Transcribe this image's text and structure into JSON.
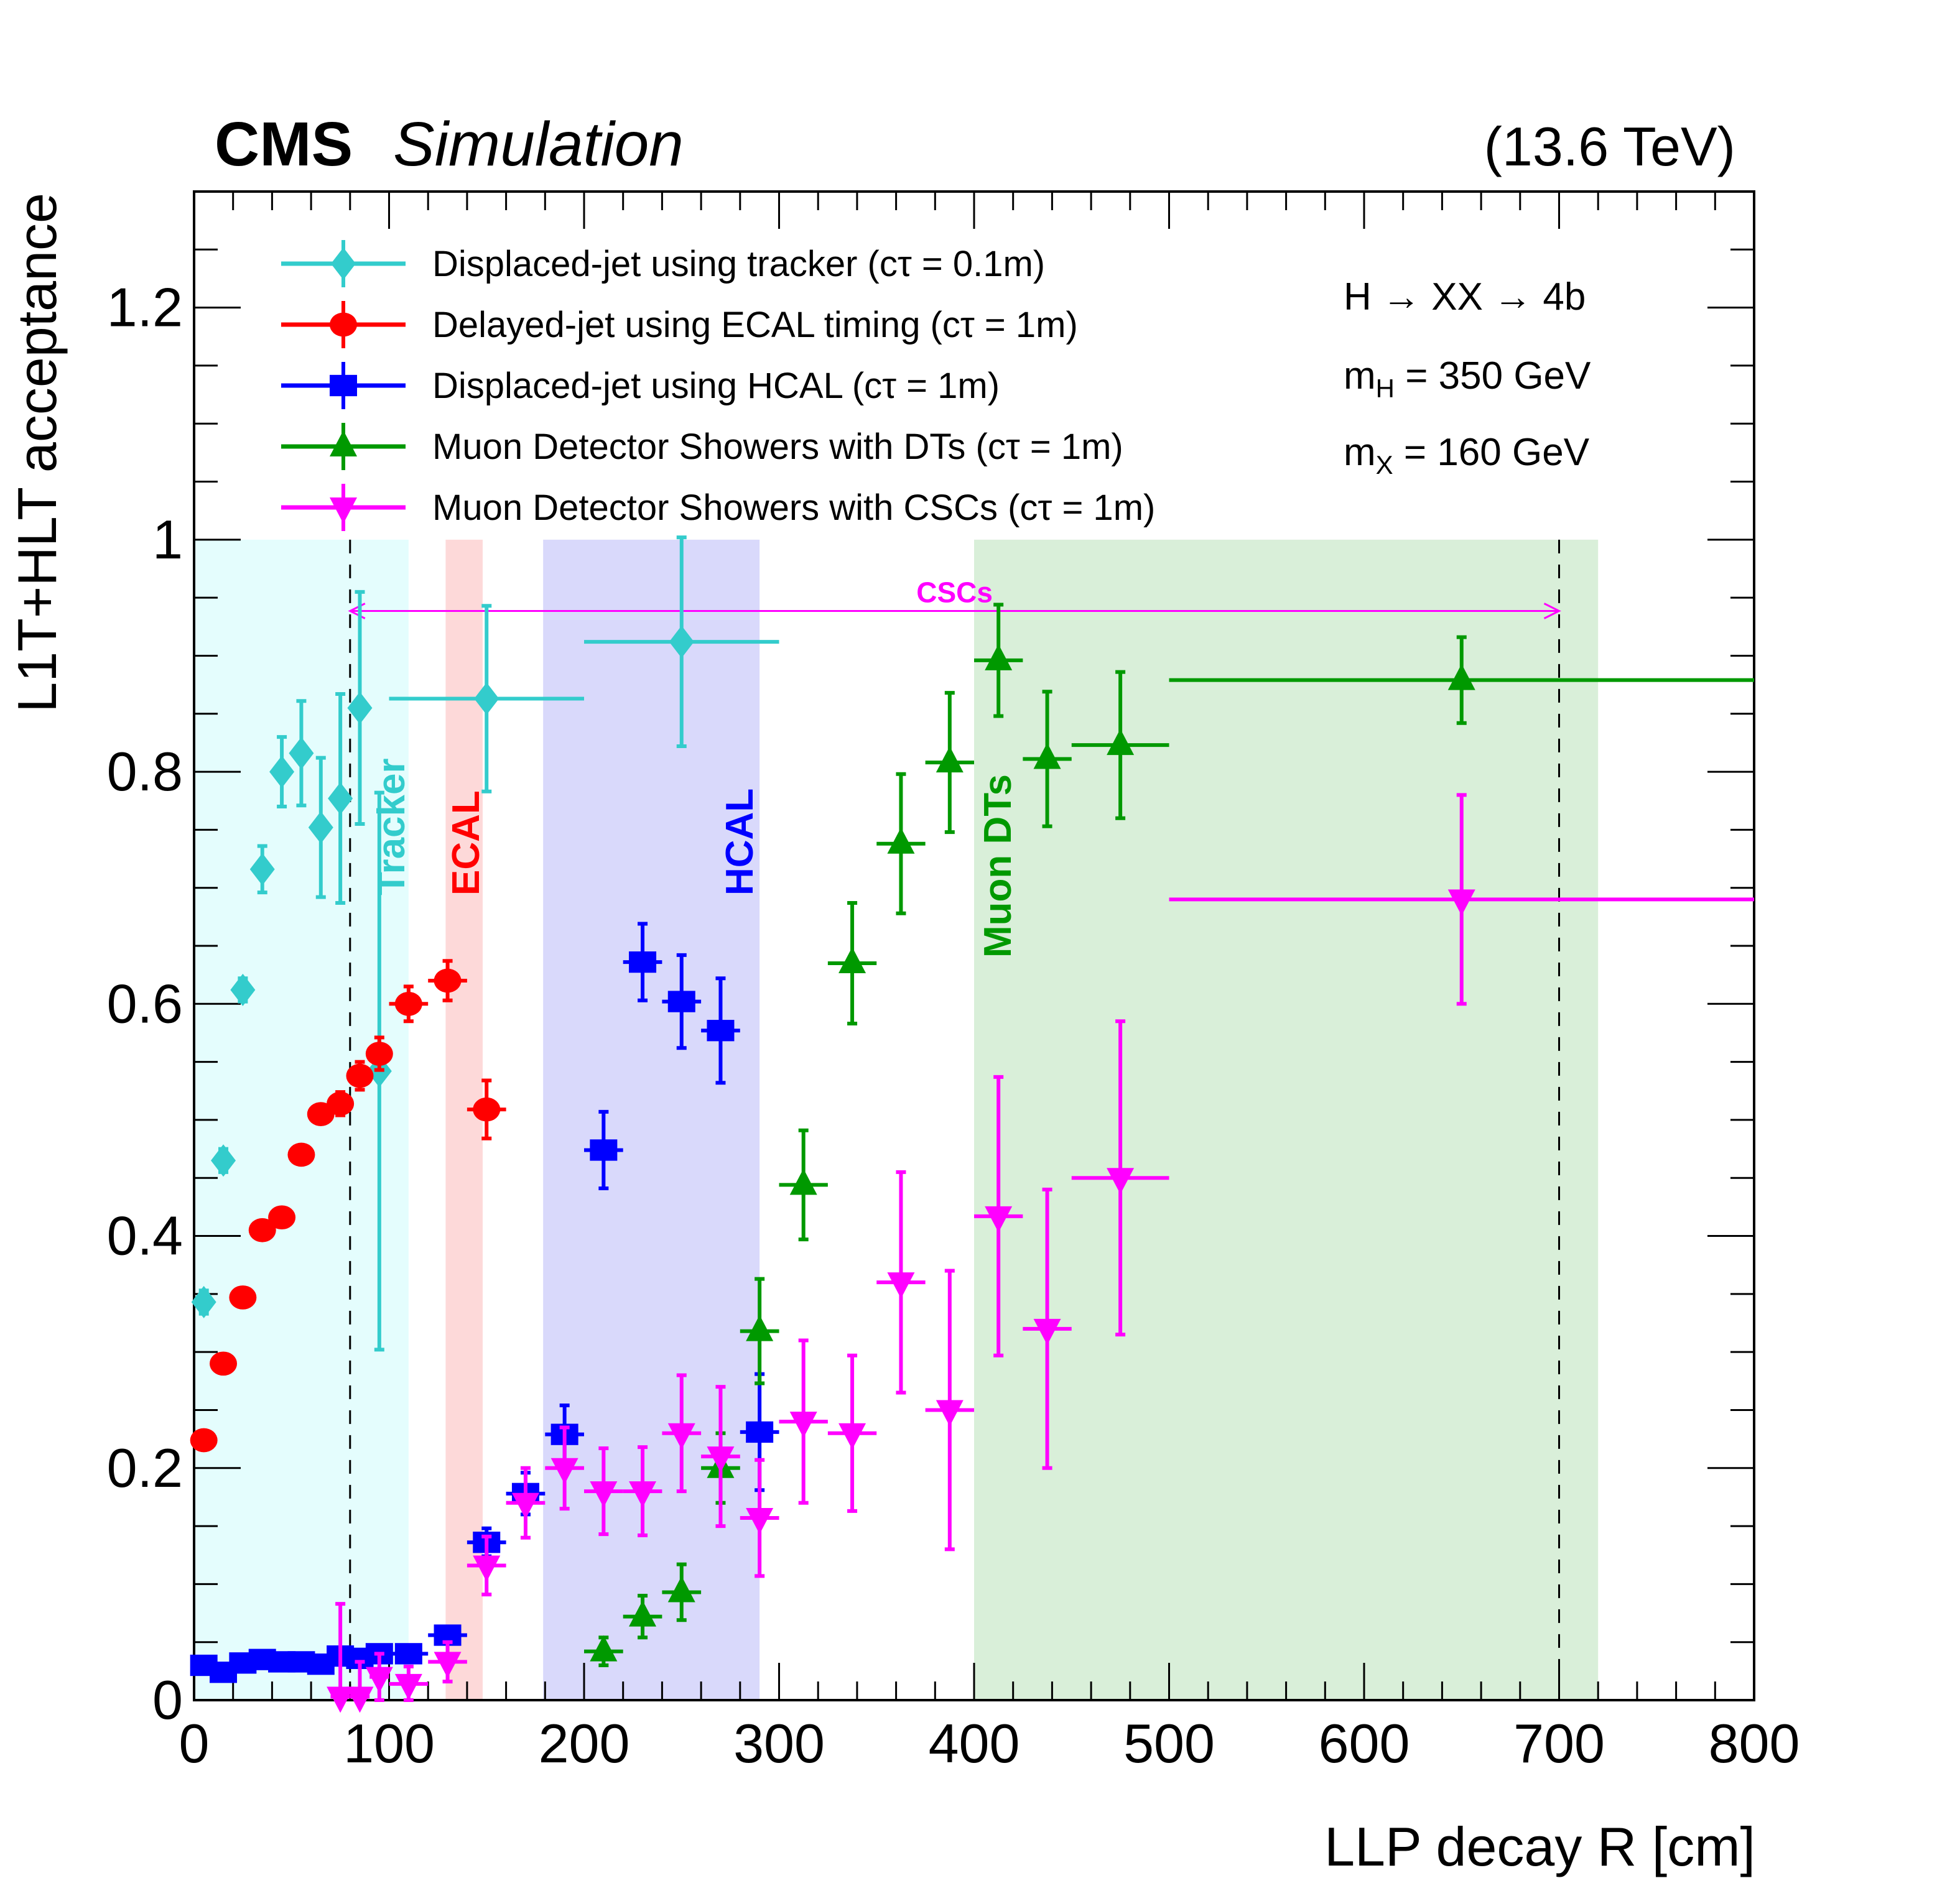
{
  "chart_data": {
    "type": "scatter",
    "header": {
      "experiment": "CMS",
      "qualifier": "Simulation",
      "energy": "(13.6 TeV)"
    },
    "xlabel": "LLP decay R [cm]",
    "ylabel": "L1T+HLT acceptance",
    "xlim": [
      0,
      800
    ],
    "ylim": [
      0,
      1.3
    ],
    "xticks": [
      0,
      100,
      200,
      300,
      400,
      500,
      600,
      700,
      800
    ],
    "yticks": [
      0,
      0.2,
      0.4,
      0.6,
      0.8,
      1,
      1.2
    ],
    "ytick_labels": [
      "0",
      "0.2",
      "0.4",
      "0.6",
      "0.8",
      "1",
      "1.2"
    ],
    "grid": false,
    "legend_position": "top-left",
    "annotations": {
      "process": "H → XX → 4b",
      "mH": {
        "base": "m",
        "sub": "H",
        "rest": " = 350 GeV"
      },
      "mX": {
        "base": "m",
        "sub": "X",
        "rest": " = 160 GeV"
      }
    },
    "regions": [
      {
        "name": "Tracker",
        "x": [
          0,
          110
        ],
        "ymax": 1,
        "color": "#e4fdfd",
        "label_color": "#33cccc"
      },
      {
        "name": "ECAL",
        "x": [
          129,
          148
        ],
        "ymax": 1,
        "color": "#fdd9d9",
        "label_color": "#ff0000"
      },
      {
        "name": "HCAL",
        "x": [
          179,
          290
        ],
        "ymax": 1,
        "color": "#d9d9fb",
        "label_color": "#0000ff"
      },
      {
        "name": "Muon DTs",
        "x": [
          400,
          720
        ],
        "ymax": 1,
        "color": "#d9efd9",
        "label_color": "#009900"
      }
    ],
    "csc_arrow": {
      "label": "CSCs",
      "x": [
        80,
        700
      ],
      "y": 0.96,
      "color": "#ff00ff"
    },
    "dashed_lines": [
      80,
      700
    ],
    "series": [
      {
        "name": "Displaced-jet using tracker (cτ = 0.1m)",
        "color": "#33cccc",
        "marker": "diamond",
        "x": [
          5,
          15,
          25,
          35,
          45,
          55,
          65,
          75,
          85,
          95,
          150,
          250
        ],
        "xerr": [
          5,
          5,
          5,
          5,
          5,
          5,
          5,
          5,
          5,
          5,
          50,
          50
        ],
        "y": [
          0.343,
          0.465,
          0.612,
          0.716,
          0.8,
          0.816,
          0.752,
          0.777,
          0.855,
          0.542,
          0.863,
          0.912
        ],
        "yerr": [
          0.01,
          0.01,
          0.01,
          0.02,
          0.03,
          0.045,
          0.06,
          0.09,
          0.1,
          0.24,
          0.08,
          0.09
        ]
      },
      {
        "name": "Delayed-jet using ECAL timing (cτ = 1m)",
        "color": "#ff0000",
        "marker": "circle",
        "x": [
          5,
          15,
          25,
          35,
          45,
          55,
          65,
          75,
          85,
          95,
          110,
          130,
          150
        ],
        "xerr": [
          5,
          5,
          5,
          5,
          5,
          5,
          5,
          5,
          5,
          5,
          10,
          10,
          10
        ],
        "y": [
          0.224,
          0.29,
          0.347,
          0.405,
          0.416,
          0.47,
          0.505,
          0.514,
          0.538,
          0.557,
          0.6,
          0.62,
          0.509
        ],
        "yerr": [
          0.005,
          0.005,
          0.005,
          0.005,
          0.005,
          0.005,
          0.008,
          0.01,
          0.012,
          0.014,
          0.015,
          0.017,
          0.025
        ]
      },
      {
        "name": "Displaced-jet using HCAL (cτ = 1m)",
        "color": "#0000ff",
        "marker": "square",
        "x": [
          5,
          15,
          25,
          35,
          45,
          55,
          65,
          75,
          85,
          95,
          110,
          130,
          150,
          170,
          190,
          210,
          230,
          250,
          270,
          290
        ],
        "xerr": [
          5,
          5,
          5,
          5,
          5,
          5,
          5,
          5,
          5,
          5,
          10,
          10,
          10,
          10,
          10,
          10,
          10,
          10,
          10,
          10
        ],
        "y": [
          0.03,
          0.024,
          0.032,
          0.035,
          0.033,
          0.033,
          0.031,
          0.038,
          0.036,
          0.04,
          0.04,
          0.056,
          0.136,
          0.178,
          0.229,
          0.474,
          0.636,
          0.602,
          0.577,
          0.231
        ],
        "yerr": [
          0.002,
          0.002,
          0.002,
          0.002,
          0.002,
          0.002,
          0.002,
          0.002,
          0.003,
          0.003,
          0.004,
          0.006,
          0.012,
          0.018,
          0.025,
          0.033,
          0.033,
          0.04,
          0.045,
          0.05
        ]
      },
      {
        "name": "Muon Detector Showers with DTs (cτ = 1m)",
        "color": "#009900",
        "marker": "triangle-up",
        "x": [
          210,
          230,
          250,
          270,
          290,
          312.5,
          337.5,
          362.5,
          387.5,
          412.5,
          437.5,
          475,
          650
        ],
        "xerr": [
          10,
          10,
          10,
          10,
          10,
          12.5,
          12.5,
          12.5,
          12.5,
          12.5,
          12.5,
          25,
          150
        ],
        "y": [
          0.042,
          0.072,
          0.093,
          0.2,
          0.318,
          0.444,
          0.635,
          0.738,
          0.808,
          0.896,
          0.811,
          0.823,
          0.879
        ],
        "yerr": [
          0.012,
          0.018,
          0.024,
          0.03,
          0.045,
          0.047,
          0.052,
          0.06,
          0.06,
          0.048,
          0.058,
          0.063,
          0.037
        ]
      },
      {
        "name": "Muon Detector Showers with CSCs (cτ = 1m)",
        "color": "#ff00ff",
        "marker": "triangle-down",
        "x": [
          75,
          85,
          95,
          110,
          130,
          150,
          170,
          190,
          210,
          230,
          250,
          270,
          290,
          312.5,
          337.5,
          362.5,
          387.5,
          412.5,
          437.5,
          475,
          650
        ],
        "xerr": [
          5,
          5,
          5,
          10,
          10,
          10,
          10,
          10,
          10,
          10,
          10,
          10,
          10,
          12.5,
          12.5,
          12.5,
          12.5,
          12.5,
          12.5,
          25,
          150
        ],
        "y": [
          0.003,
          0.003,
          0.02,
          0.014,
          0.033,
          0.116,
          0.17,
          0.2,
          0.18,
          0.18,
          0.23,
          0.21,
          0.157,
          0.24,
          0.23,
          0.36,
          0.25,
          0.417,
          0.32,
          0.45,
          0.69
        ],
        "yerr": [
          0.08,
          0.03,
          0.02,
          0.015,
          0.017,
          0.025,
          0.03,
          0.035,
          0.037,
          0.038,
          0.05,
          0.06,
          0.05,
          0.07,
          0.067,
          0.095,
          0.12,
          0.12,
          0.12,
          0.135,
          0.09
        ]
      }
    ]
  }
}
